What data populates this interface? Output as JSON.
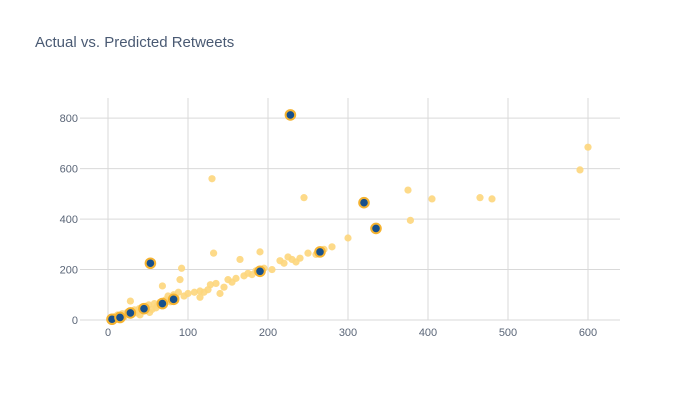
{
  "chart_data": {
    "type": "scatter",
    "title": "Actual vs. Predicted Retweets",
    "xlabel": "",
    "ylabel": "",
    "xlim": [
      -35,
      640
    ],
    "ylim": [
      0,
      880
    ],
    "x_ticks": [
      0,
      100,
      200,
      300,
      400,
      500,
      600
    ],
    "y_ticks": [
      0,
      200,
      400,
      600,
      800
    ],
    "grid": true,
    "colors": {
      "background_points": "#fdd67c",
      "highlight_fill": "#17508c",
      "highlight_stroke": "#f5b331",
      "grid": "#d9d9d9",
      "text": "#4a5a73"
    },
    "series": [
      {
        "values_xy": [
          [
            3,
            5
          ],
          [
            6,
            10
          ],
          [
            9,
            14
          ],
          [
            12,
            20
          ],
          [
            15,
            8
          ],
          [
            18,
            25
          ],
          [
            21,
            18
          ],
          [
            24,
            30
          ],
          [
            27,
            35
          ],
          [
            30,
            22
          ],
          [
            33,
            40
          ],
          [
            36,
            28
          ],
          [
            39,
            45
          ],
          [
            42,
            50
          ],
          [
            45,
            38
          ],
          [
            48,
            55
          ],
          [
            51,
            60
          ],
          [
            55,
            42
          ],
          [
            58,
            65
          ],
          [
            62,
            58
          ],
          [
            65,
            70
          ],
          [
            68,
            135
          ],
          [
            72,
            80
          ],
          [
            75,
            95
          ],
          [
            78,
            72
          ],
          [
            82,
            100
          ],
          [
            85,
            88
          ],
          [
            88,
            110
          ],
          [
            90,
            160
          ],
          [
            92,
            205
          ],
          [
            95,
            95
          ],
          [
            100,
            105
          ],
          [
            108,
            110
          ],
          [
            115,
            115
          ],
          [
            125,
            120
          ],
          [
            128,
            140
          ],
          [
            130,
            560
          ],
          [
            132,
            265
          ],
          [
            135,
            145
          ],
          [
            140,
            105
          ],
          [
            145,
            130
          ],
          [
            150,
            160
          ],
          [
            155,
            150
          ],
          [
            165,
            240
          ],
          [
            170,
            175
          ],
          [
            175,
            185
          ],
          [
            180,
            180
          ],
          [
            185,
            195
          ],
          [
            190,
            270
          ],
          [
            195,
            205
          ],
          [
            215,
            235
          ],
          [
            220,
            225
          ],
          [
            230,
            240
          ],
          [
            235,
            230
          ],
          [
            240,
            245
          ],
          [
            245,
            485
          ],
          [
            250,
            265
          ],
          [
            260,
            260
          ],
          [
            270,
            280
          ],
          [
            280,
            290
          ],
          [
            300,
            325
          ],
          [
            375,
            515
          ],
          [
            378,
            395
          ],
          [
            405,
            480
          ],
          [
            465,
            485
          ],
          [
            480,
            480
          ],
          [
            590,
            595
          ],
          [
            600,
            685
          ],
          [
            28,
            75
          ],
          [
            40,
            20
          ],
          [
            52,
            30
          ],
          [
            60,
            48
          ],
          [
            115,
            90
          ],
          [
            160,
            165
          ],
          [
            205,
            200
          ],
          [
            225,
            250
          ],
          [
            10,
            3
          ],
          [
            20,
            12
          ],
          [
            35,
            32
          ],
          [
            70,
            62
          ],
          [
            80,
            78
          ],
          [
            120,
            110
          ]
        ]
      },
      {
        "values_xy": [
          [
            5,
            3
          ],
          [
            15,
            10
          ],
          [
            28,
            28
          ],
          [
            45,
            45
          ],
          [
            53,
            225
          ],
          [
            68,
            65
          ],
          [
            82,
            82
          ],
          [
            190,
            193
          ],
          [
            228,
            813
          ],
          [
            265,
            270
          ],
          [
            320,
            465
          ],
          [
            335,
            363
          ]
        ]
      }
    ]
  }
}
